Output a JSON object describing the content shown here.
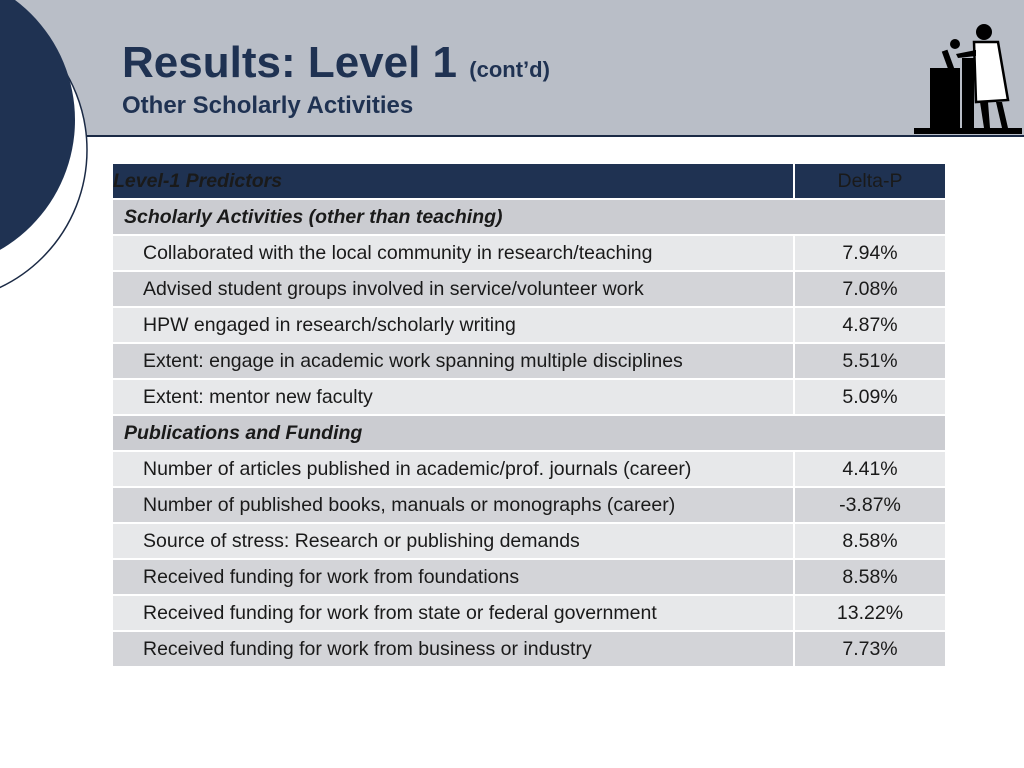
{
  "header": {
    "title": "Results: Level 1",
    "title_suffix": "(cont’d)",
    "subtitle": "Other Scholarly Activities"
  },
  "icons": {
    "logo": "scientist-with-microscope-icon"
  },
  "colors": {
    "navy": "#1f3252",
    "band": "#b9bec7",
    "section": "#cbccd1",
    "row_light": "#e7e8ea",
    "row_dark": "#d3d4d8"
  },
  "table": {
    "headers": {
      "predictors": "Level-1 Predictors",
      "delta": "Delta-P"
    },
    "sections": [
      {
        "title": "Scholarly Activities (other than teaching)",
        "rows": [
          {
            "predictor": "Collaborated with the local community in research/teaching",
            "delta": "7.94%"
          },
          {
            "predictor": "Advised student groups involved in service/volunteer work",
            "delta": "7.08%"
          },
          {
            "predictor": "HPW engaged in research/scholarly writing",
            "delta": "4.87%"
          },
          {
            "predictor": "Extent: engage in academic work spanning multiple disciplines",
            "delta": "5.51%"
          },
          {
            "predictor": "Extent: mentor new faculty",
            "delta": "5.09%"
          }
        ]
      },
      {
        "title": "Publications and Funding",
        "rows": [
          {
            "predictor": "Number of articles published in academic/prof. journals (career)",
            "delta": "4.41%"
          },
          {
            "predictor": "Number of published books, manuals or monographs (career)",
            "delta": "-3.87%"
          },
          {
            "predictor": "Source of stress: Research or publishing demands",
            "delta": "8.58%"
          },
          {
            "predictor": "Received funding for work from foundations",
            "delta": "8.58%"
          },
          {
            "predictor": "Received funding for work from state or federal government",
            "delta": "13.22%"
          },
          {
            "predictor": "Received funding for work from business or industry",
            "delta": "7.73%"
          }
        ]
      }
    ]
  }
}
